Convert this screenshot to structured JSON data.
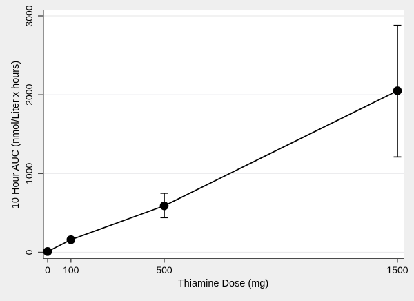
{
  "figure": {
    "background_color": "#efefef",
    "plot_background_color": "#ffffff",
    "grid_color": "#e9e9eb",
    "axis_color": "#4a4a4a",
    "series_color": "#000000",
    "text_color": "#000000"
  },
  "chart_data": {
    "type": "line",
    "title": "",
    "xlabel": "Thiamine Dose (mg)",
    "ylabel": "10 Hour AUC (nmol/Liter x hours)",
    "x": [
      0,
      100,
      500,
      1500
    ],
    "y": [
      10,
      160,
      590,
      2050
    ],
    "error_low": [
      null,
      null,
      440,
      1210
    ],
    "error_high": [
      null,
      null,
      750,
      2880
    ],
    "xticks": [
      0,
      100,
      500,
      1500
    ],
    "xtick_labels": [
      "0",
      "100",
      "500",
      "1500"
    ],
    "yticks": [
      0,
      1000,
      2000,
      3000
    ],
    "ytick_labels": [
      "0",
      "1000",
      "2000",
      "3000"
    ],
    "xlim": [
      0,
      1527
    ],
    "ylim": [
      0,
      3069
    ],
    "grid": "horizontal",
    "legend": "none",
    "marker": "filled-circle",
    "error_bars": "vertical-with-caps"
  }
}
